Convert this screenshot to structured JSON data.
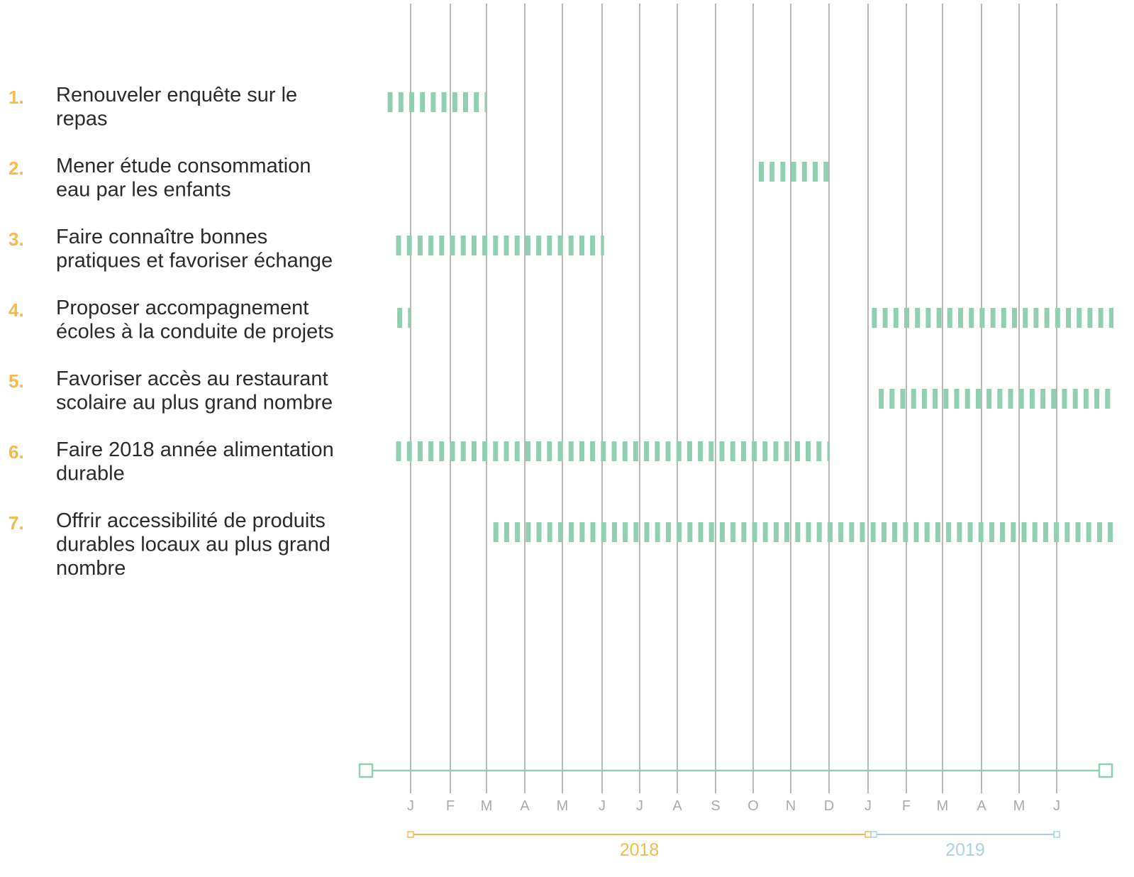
{
  "chart_data": {
    "type": "gantt",
    "title": "",
    "months": [
      "J",
      "F",
      "M",
      "A",
      "M",
      "J",
      "J",
      "A",
      "S",
      "O",
      "N",
      "D",
      "J",
      "F",
      "M",
      "A",
      "M",
      "J"
    ],
    "years": [
      {
        "label": "2018",
        "start_month": 0,
        "end_month": 12,
        "color": "#f5b94e"
      },
      {
        "label": "2019",
        "start_month": 12,
        "end_month": 17,
        "color": "#aad4dc"
      }
    ],
    "tasks": [
      {
        "number": "1.",
        "label_lines": [
          "Renouveler enquête sur le",
          "repas"
        ],
        "segments": [
          [
            -0.6,
            2.0
          ]
        ]
      },
      {
        "number": "2.",
        "label_lines": [
          "Mener étude consommation",
          "eau par les enfants"
        ],
        "segments": [
          [
            9.15,
            11.0
          ]
        ]
      },
      {
        "number": "3.",
        "label_lines": [
          "Faire connaître bonnes",
          "pratiques et favoriser échange"
        ],
        "segments": [
          [
            -0.38,
            5.05
          ]
        ]
      },
      {
        "number": "4.",
        "label_lines": [
          "Proposer accompagnement",
          "écoles à la conduite de projets"
        ],
        "segments": [
          [
            -0.35,
            0.0
          ],
          [
            12.1,
            18.8
          ]
        ]
      },
      {
        "number": "5.",
        "label_lines": [
          "Favoriser accès au restaurant",
          "scolaire au plus grand nombre"
        ],
        "segments": [
          [
            12.28,
            18.8
          ]
        ]
      },
      {
        "number": "6.",
        "label_lines": [
          "Faire 2018 année alimentation",
          "durable"
        ],
        "segments": [
          [
            -0.38,
            11.0
          ]
        ]
      },
      {
        "number": "7.",
        "label_lines": [
          "Offrir accessibilité de produits",
          "durables locaux au plus grand",
          "nombre"
        ],
        "segments": [
          [
            2.18,
            18.5
          ]
        ]
      }
    ],
    "colors": {
      "bar": "#8fd0b3",
      "number": "#f5b94e",
      "label": "#2b2b2b",
      "grid": "#9a9a9a",
      "axis": "#8fd0b3",
      "month_label": "#aaaaaa"
    }
  }
}
